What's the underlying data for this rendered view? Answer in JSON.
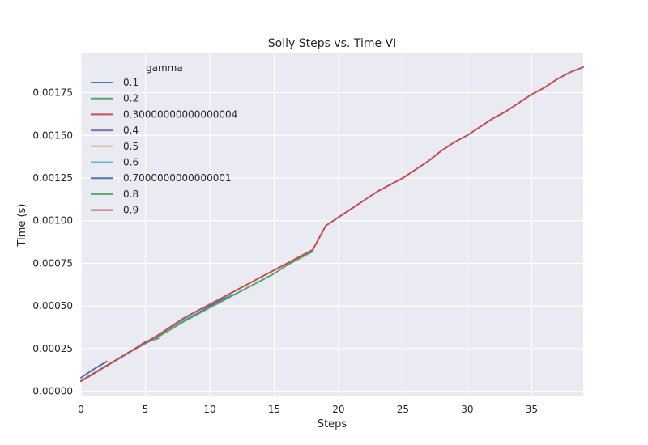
{
  "colors": {
    "axes_bg": "#EAEAF2",
    "grid": "#FFFFFF",
    "text": "#262626"
  },
  "chart_data": {
    "type": "line",
    "title": "Solly Steps vs. Time VI",
    "xlabel": "Steps",
    "ylabel": "Time (s)",
    "xlim": [
      0,
      39
    ],
    "ylim": [
      -3e-05,
      0.00198
    ],
    "xticks": [
      "0",
      "5",
      "10",
      "15",
      "20",
      "25",
      "30",
      "35"
    ],
    "yticks": [
      "0.00000",
      "0.00025",
      "0.00050",
      "0.00075",
      "0.00100",
      "0.00125",
      "0.00150",
      "0.00175"
    ],
    "grid": true,
    "legend": {
      "title": "gamma",
      "placement": "upper-left"
    },
    "series": [
      {
        "name": "0.1",
        "color": "#4C72B0",
        "x": [
          0,
          1,
          2
        ],
        "y": [
          8e-05,
          0.00013,
          0.000175
        ]
      },
      {
        "name": "0.2",
        "color": "#55A868",
        "x": [
          0,
          1,
          2,
          3,
          4,
          5
        ],
        "y": [
          6e-05,
          0.000105,
          0.00015,
          0.000195,
          0.00024,
          0.000285
        ]
      },
      {
        "name": "0.30000000000000004",
        "color": "#C44E52",
        "x": [
          0,
          1,
          2,
          3,
          4,
          5
        ],
        "y": [
          6e-05,
          0.000105,
          0.00015,
          0.000195,
          0.00024,
          0.000285
        ]
      },
      {
        "name": "0.4",
        "color": "#8172B2",
        "x": [
          0,
          1,
          2,
          3,
          4,
          5,
          6
        ],
        "y": [
          6e-05,
          0.000105,
          0.00015,
          0.000195,
          0.00024,
          0.00029,
          0.00031
        ]
      },
      {
        "name": "0.5",
        "color": "#CCB974",
        "x": [
          0,
          1,
          2,
          3,
          4,
          5,
          6,
          7,
          8
        ],
        "y": [
          6e-05,
          0.000105,
          0.00015,
          0.000195,
          0.00024,
          0.000285,
          0.00033,
          0.000375,
          0.00042
        ]
      },
      {
        "name": "0.6",
        "color": "#64B5CD",
        "x": [
          0,
          1,
          2,
          3,
          4,
          5,
          6,
          7,
          8,
          9
        ],
        "y": [
          6e-05,
          0.000105,
          0.00015,
          0.000195,
          0.00024,
          0.000285,
          0.00033,
          0.000375,
          0.00042,
          0.000455
        ]
      },
      {
        "name": "0.7000000000000001",
        "color": "#4C72B0",
        "x": [
          0,
          1,
          2,
          3,
          4,
          5,
          6,
          7,
          8,
          9,
          10,
          11,
          12
        ],
        "y": [
          6e-05,
          0.000105,
          0.00015,
          0.000195,
          0.00024,
          0.000285,
          0.00032,
          0.000365,
          0.00041,
          0.000455,
          0.0005,
          0.00054,
          0.00057
        ]
      },
      {
        "name": "0.8",
        "color": "#55A868",
        "x": [
          0,
          1,
          2,
          3,
          4,
          5,
          6,
          7,
          8,
          9,
          10,
          11,
          12,
          13,
          14,
          15,
          16,
          17,
          18
        ],
        "y": [
          6e-05,
          0.000105,
          0.00015,
          0.000195,
          0.00024,
          0.00028,
          0.00032,
          0.000365,
          0.00041,
          0.00045,
          0.00049,
          0.00053,
          0.00057,
          0.00061,
          0.00065,
          0.00069,
          0.00074,
          0.00078,
          0.00082
        ]
      },
      {
        "name": "0.9",
        "color": "#C44E52",
        "x": [
          0,
          1,
          2,
          3,
          4,
          5,
          6,
          7,
          8,
          9,
          10,
          11,
          12,
          13,
          14,
          15,
          16,
          17,
          18,
          19,
          20,
          21,
          22,
          23,
          24,
          25,
          26,
          27,
          28,
          29,
          30,
          31,
          32,
          33,
          34,
          35,
          36,
          37,
          38,
          39
        ],
        "y": [
          6e-05,
          0.000105,
          0.00015,
          0.000195,
          0.00024,
          0.000285,
          0.00033,
          0.00038,
          0.00043,
          0.00047,
          0.00051,
          0.00055,
          0.00059,
          0.00063,
          0.00067,
          0.00071,
          0.00075,
          0.00079,
          0.00083,
          0.00097,
          0.00102,
          0.00107,
          0.00112,
          0.00117,
          0.00121,
          0.00125,
          0.0013,
          0.00135,
          0.00141,
          0.00146,
          0.0015,
          0.00155,
          0.0016,
          0.00164,
          0.00169,
          0.00174,
          0.00178,
          0.00183,
          0.00187,
          0.0019
        ]
      }
    ]
  }
}
